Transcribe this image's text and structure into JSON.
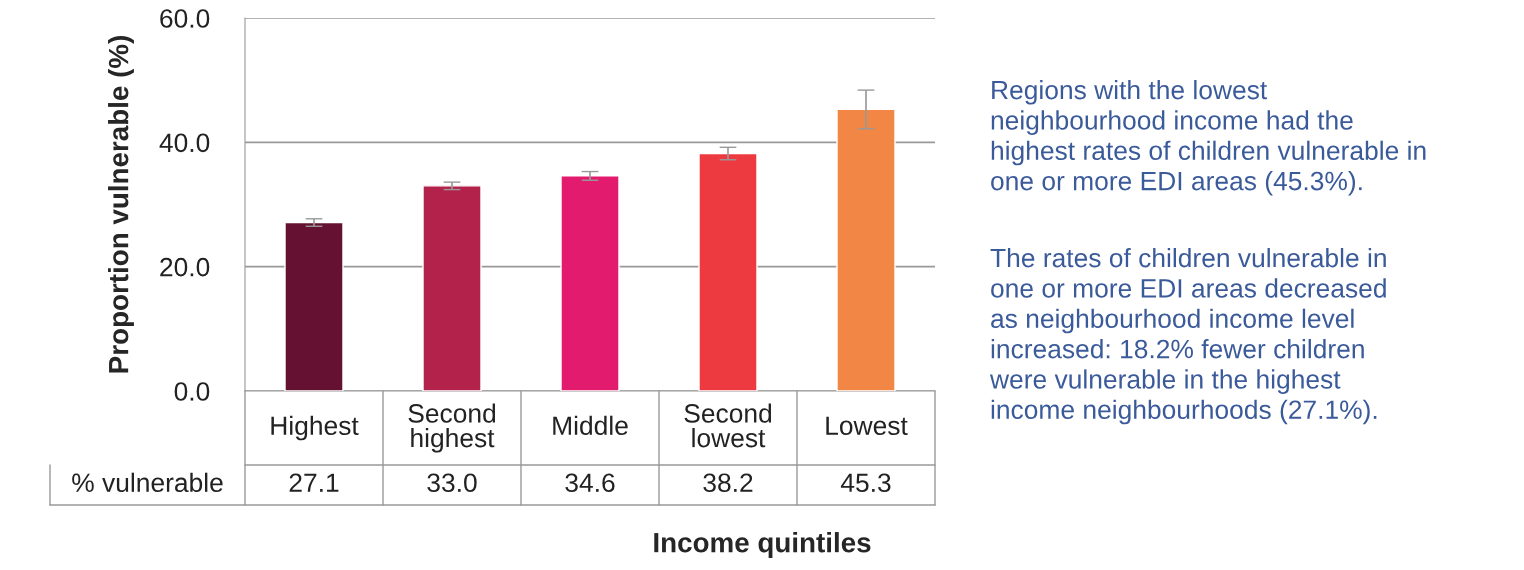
{
  "chart_data": {
    "type": "bar",
    "xlabel": "Income quintiles",
    "ylabel": "Proportion vulnerable (%)",
    "categories": [
      "Highest",
      "Second\nhighest",
      "Middle",
      "Second\nlowest",
      "Lowest"
    ],
    "series": [
      {
        "name": "% vulnerable",
        "values": [
          27.1,
          33.0,
          34.6,
          38.2,
          45.3
        ],
        "colors": [
          "#651232",
          "#b3224a",
          "#e21b6e",
          "#ec3a40",
          "#f28644"
        ],
        "errors": [
          0.6,
          0.6,
          0.7,
          1.0,
          3.1
        ],
        "value_labels": [
          "27.1",
          "33.0",
          "34.6",
          "38.2",
          "45.3"
        ]
      }
    ],
    "ylim": [
      0,
      60
    ],
    "yticks": [
      {
        "value": 0,
        "label": "0.0"
      },
      {
        "value": 20,
        "label": "20.0"
      },
      {
        "value": 40,
        "label": "40.0"
      },
      {
        "value": 60,
        "label": "60.0"
      }
    ],
    "grid": "y",
    "annotations": [
      "Regions with the lowest\nneighbourhood income had the\nhighest rates of children vulnerable in\none or more EDI areas (45.3%).",
      "The rates of children vulnerable in\none or more EDI areas decreased\nas neighbourhood income level\nincreased: 18.2% fewer children\nwere vulnerable in the highest\nincome neighbourhoods (27.1%)."
    ]
  }
}
